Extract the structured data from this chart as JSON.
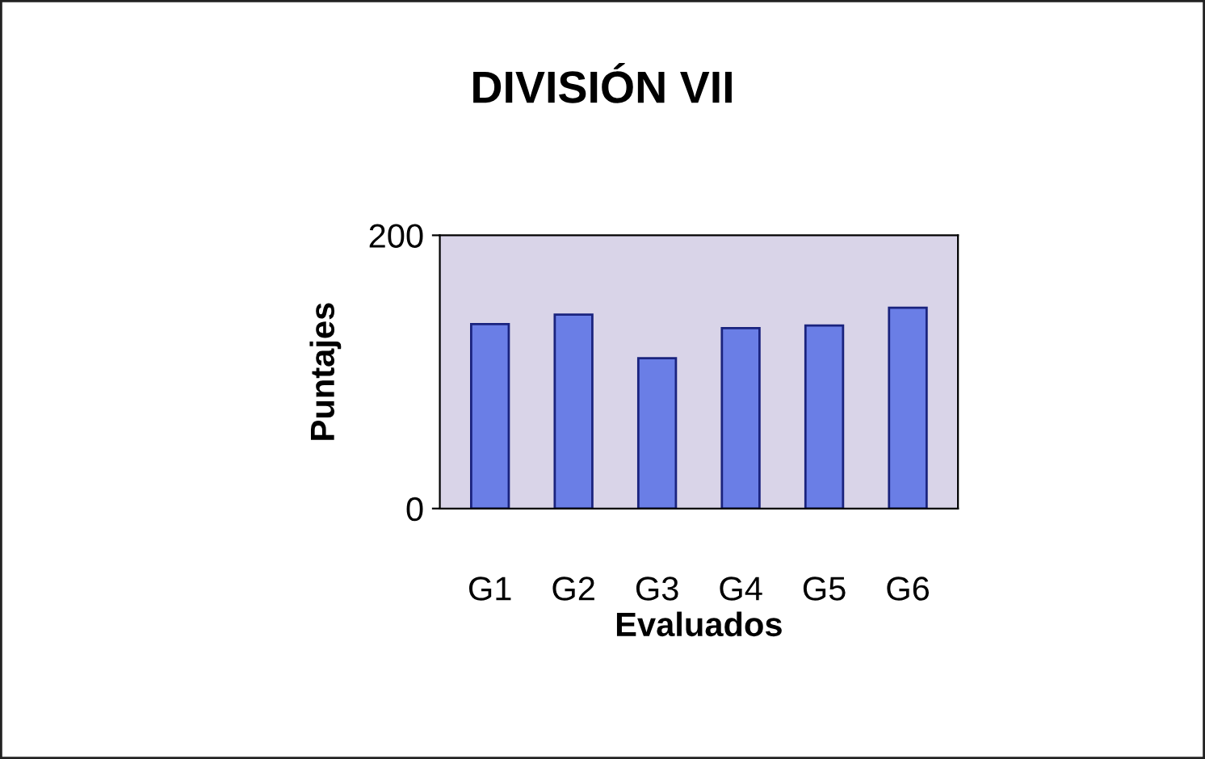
{
  "chart_data": {
    "type": "bar",
    "title": "DIVISIÓN VII",
    "xlabel": "Evaluados",
    "ylabel": "Puntajes",
    "categories": [
      "G1",
      "G2",
      "G3",
      "G4",
      "G5",
      "G6"
    ],
    "values": [
      135,
      142,
      110,
      132,
      134,
      147
    ],
    "color": "#6a7ee6",
    "ylim": [
      0,
      200
    ],
    "yticks": [
      0,
      200
    ],
    "grid": false
  }
}
